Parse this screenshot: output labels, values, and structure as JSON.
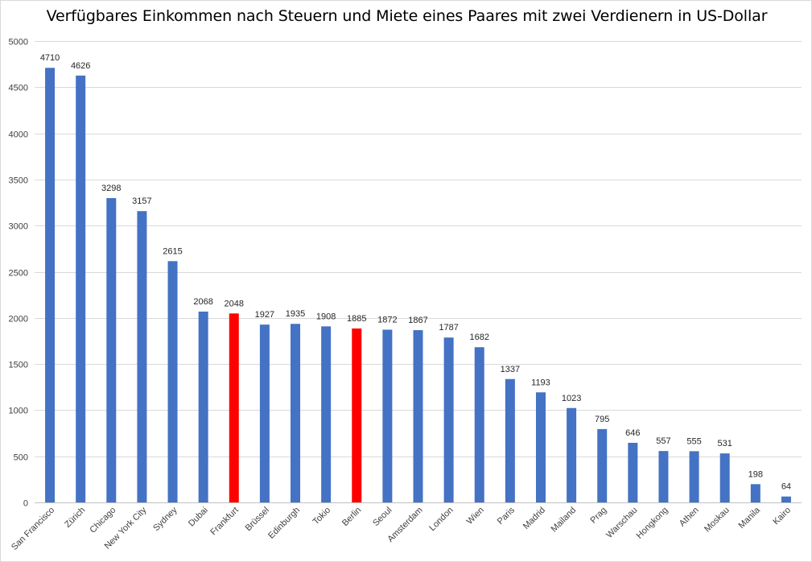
{
  "chart_data": {
    "type": "bar",
    "title": "Verfügbares Einkommen nach Steuern und Miete eines Paares mit zwei Verdienern in US-Dollar",
    "xlabel": "",
    "ylabel": "",
    "ylim": [
      0,
      5000
    ],
    "yticks": [
      0,
      500,
      1000,
      1500,
      2000,
      2500,
      3000,
      3500,
      4000,
      4500,
      5000
    ],
    "grid": true,
    "legend": "none",
    "categories": [
      "San Francisco",
      "Zürich",
      "Chicago",
      "New York City",
      "Sydney",
      "Dubai",
      "Frankfurt",
      "Brüssel",
      "Edinburgh",
      "Tokio",
      "Berlin",
      "Seoul",
      "Amsterdam",
      "London",
      "Wien",
      "Paris",
      "Madrid",
      "Mailand",
      "Prag",
      "Warschau",
      "Hongkong",
      "Athen",
      "Moskau",
      "Manila",
      "Kairo"
    ],
    "values": [
      4710,
      4626,
      3298,
      3157,
      2615,
      2068,
      2048,
      1927,
      1935,
      1908,
      1885,
      1872,
      1867,
      1787,
      1682,
      1337,
      1193,
      1023,
      795,
      646,
      557,
      555,
      531,
      198,
      64
    ],
    "highlighted": [
      "Frankfurt",
      "Berlin"
    ],
    "colors": {
      "default": "#4472c4",
      "highlight": "#ff0000",
      "grid": "#d9d9d9"
    }
  }
}
